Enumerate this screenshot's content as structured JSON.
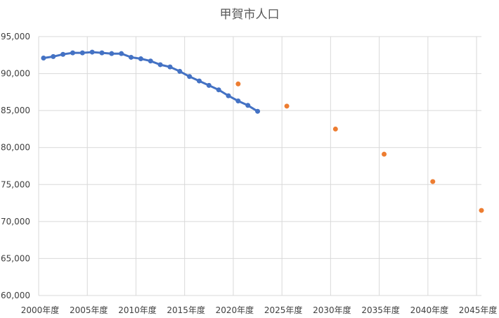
{
  "chart_data": {
    "type": "line",
    "title": "甲賀市人口",
    "xlabel": "",
    "ylabel": "",
    "xlim": [
      2000,
      2045.5
    ],
    "ylim": [
      60000,
      95000
    ],
    "grid": true,
    "legend": "none",
    "x_ticks": [
      2000,
      2005,
      2010,
      2015,
      2020,
      2025,
      2030,
      2035,
      2040,
      2045
    ],
    "x_tick_labels": [
      "2000年度",
      "2005年度",
      "2010年度",
      "2015年度",
      "2020年度",
      "2025年度",
      "2030年度",
      "2035年度",
      "2040年度",
      "2045年度"
    ],
    "y_ticks": [
      60000,
      65000,
      70000,
      75000,
      80000,
      85000,
      90000,
      95000
    ],
    "y_tick_labels": [
      "60,000",
      "65,000",
      "70,000",
      "75,000",
      "80,000",
      "85,000",
      "90,000",
      "95,000"
    ],
    "series": [
      {
        "color": "#4472c4",
        "style": "line-with-markers",
        "x": [
          2000.5,
          2001.5,
          2002.5,
          2003.5,
          2004.5,
          2005.5,
          2006.5,
          2007.5,
          2008.5,
          2009.5,
          2010.5,
          2011.5,
          2012.5,
          2013.5,
          2014.5,
          2015.5,
          2016.5,
          2017.5,
          2018.5,
          2019.5,
          2020.5,
          2021.5,
          2022.5
        ],
        "values": [
          92100,
          92300,
          92600,
          92800,
          92800,
          92900,
          92800,
          92700,
          92700,
          92200,
          92000,
          91700,
          91200,
          90900,
          90300,
          89600,
          89000,
          88400,
          87800,
          87000,
          86300,
          85700,
          84900
        ]
      },
      {
        "color": "#ed7d31",
        "style": "markers",
        "x": [
          2020.5,
          2025.5,
          2030.5,
          2035.5,
          2040.5,
          2045.5
        ],
        "values": [
          88600,
          85600,
          82500,
          79100,
          75400,
          71500
        ]
      }
    ]
  }
}
